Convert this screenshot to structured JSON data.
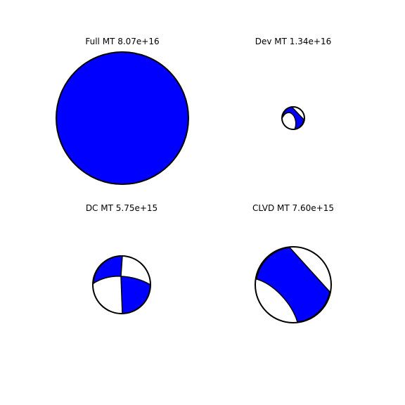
{
  "colors": {
    "fill": "#0000ff",
    "background": "#ffffff",
    "outline": "#000000"
  },
  "panels": [
    {
      "title": "Full MT 8.07e+16"
    },
    {
      "title": "Dev MT 1.34e+16"
    },
    {
      "title": "DC MT 5.75e+15"
    },
    {
      "title": "CLVD MT 7.60e+15"
    }
  ]
}
